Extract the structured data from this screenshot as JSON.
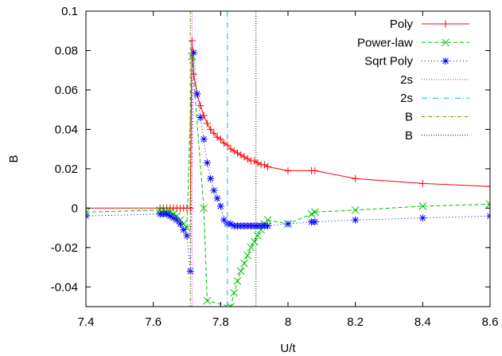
{
  "chart_data": {
    "type": "line",
    "xlabel": "U/t",
    "ylabel": "B",
    "xlim": [
      7.4,
      8.6
    ],
    "ylim": [
      -0.05,
      0.1
    ],
    "grid": false,
    "legend_position": "top-right",
    "x_ticks": [
      {
        "value": 7.4,
        "label": "7.4"
      },
      {
        "value": 7.6,
        "label": "7.6"
      },
      {
        "value": 7.8,
        "label": "7.8"
      },
      {
        "value": 8.0,
        "label": "8"
      },
      {
        "value": 8.2,
        "label": "8.2"
      },
      {
        "value": 8.4,
        "label": "8.4"
      },
      {
        "value": 8.6,
        "label": "8.6"
      }
    ],
    "y_ticks": [
      {
        "value": -0.04,
        "label": "-0.04"
      },
      {
        "value": -0.02,
        "label": "-0.02"
      },
      {
        "value": 0,
        "label": "0"
      },
      {
        "value": 0.02,
        "label": "0.02"
      },
      {
        "value": 0.04,
        "label": "0.04"
      },
      {
        "value": 0.06,
        "label": "0.06"
      },
      {
        "value": 0.08,
        "label": "0.08"
      },
      {
        "value": 0.1,
        "label": "0.1"
      }
    ],
    "series": [
      {
        "name": "Poly",
        "color": "#ff0000",
        "marker": "plus",
        "dash": "",
        "x": [
          7.4,
          7.62,
          7.63,
          7.64,
          7.65,
          7.66,
          7.67,
          7.68,
          7.69,
          7.7,
          7.71,
          7.715,
          7.72,
          7.73,
          7.74,
          7.75,
          7.76,
          7.77,
          7.78,
          7.79,
          7.8,
          7.81,
          7.82,
          7.83,
          7.84,
          7.85,
          7.86,
          7.87,
          7.88,
          7.89,
          7.9,
          7.91,
          7.92,
          7.93,
          7.94,
          8.0,
          8.07,
          8.08,
          8.2,
          8.4,
          8.6
        ],
        "y": [
          0.0,
          0.0,
          0.0,
          0.0,
          0.0,
          0.0,
          0.0,
          0.0,
          0.0,
          0.0,
          0.0,
          0.085,
          0.068,
          0.058,
          0.052,
          0.047,
          0.043,
          0.04,
          0.038,
          0.036,
          0.035,
          0.033,
          0.032,
          0.03,
          0.029,
          0.028,
          0.027,
          0.026,
          0.025,
          0.024,
          0.024,
          0.023,
          0.022,
          0.022,
          0.021,
          0.019,
          0.019,
          0.019,
          0.015,
          0.0125,
          0.011
        ]
      },
      {
        "name": "Power-law",
        "color": "#00c000",
        "marker": "x",
        "dash": "5,3",
        "x": [
          7.4,
          7.62,
          7.63,
          7.64,
          7.65,
          7.66,
          7.67,
          7.68,
          7.69,
          7.7,
          7.715,
          7.75,
          7.76,
          7.83,
          7.84,
          7.85,
          7.86,
          7.87,
          7.88,
          7.89,
          7.9,
          7.91,
          7.92,
          7.93,
          7.94,
          8.0,
          8.07,
          8.08,
          8.2,
          8.4,
          8.6
        ],
        "y": [
          -0.002,
          -0.001,
          -0.001,
          -0.002,
          -0.002,
          -0.003,
          -0.004,
          -0.006,
          -0.008,
          -0.01,
          0.077,
          0.0,
          -0.047,
          -0.05,
          -0.043,
          -0.037,
          -0.032,
          -0.028,
          -0.024,
          -0.02,
          -0.017,
          -0.014,
          -0.011,
          -0.008,
          -0.006,
          -0.008,
          -0.003,
          -0.002,
          -0.001,
          0.001,
          0.002
        ]
      },
      {
        "name": "Sqrt Poly",
        "color": "#0000ff",
        "marker": "star",
        "dash": "1,3",
        "x": [
          7.4,
          7.62,
          7.63,
          7.64,
          7.65,
          7.66,
          7.67,
          7.68,
          7.69,
          7.7,
          7.71,
          7.72,
          7.73,
          7.74,
          7.75,
          7.76,
          7.77,
          7.78,
          7.79,
          7.8,
          7.81,
          7.82,
          7.83,
          7.84,
          7.85,
          7.86,
          7.87,
          7.88,
          7.89,
          7.9,
          7.91,
          7.92,
          7.93,
          7.94,
          8.0,
          8.07,
          8.08,
          8.2,
          8.4,
          8.6
        ],
        "y": [
          -0.004,
          -0.003,
          -0.003,
          -0.003,
          -0.004,
          -0.005,
          -0.006,
          -0.008,
          -0.011,
          -0.014,
          -0.032,
          0.079,
          0.058,
          0.046,
          0.035,
          0.023,
          0.015,
          0.009,
          0.005,
          0.001,
          -0.006,
          -0.008,
          -0.008,
          -0.009,
          -0.009,
          -0.009,
          -0.009,
          -0.009,
          -0.009,
          -0.009,
          -0.009,
          -0.009,
          -0.009,
          -0.009,
          -0.008,
          -0.007,
          -0.007,
          -0.006,
          -0.005,
          -0.004
        ]
      }
    ],
    "vertical_lines": [
      {
        "name": "2s",
        "x": 7.715,
        "color": "#e000e0",
        "dash": "1,2"
      },
      {
        "name": "2s",
        "x": 7.82,
        "color": "#00c0e0",
        "dash": "7,3,1,3"
      },
      {
        "name": "B",
        "x": 7.71,
        "color": "#808000",
        "dash": "4,2,1,2"
      },
      {
        "name": "B",
        "x": 7.905,
        "color": "#000000",
        "dash": "1,2"
      }
    ]
  }
}
